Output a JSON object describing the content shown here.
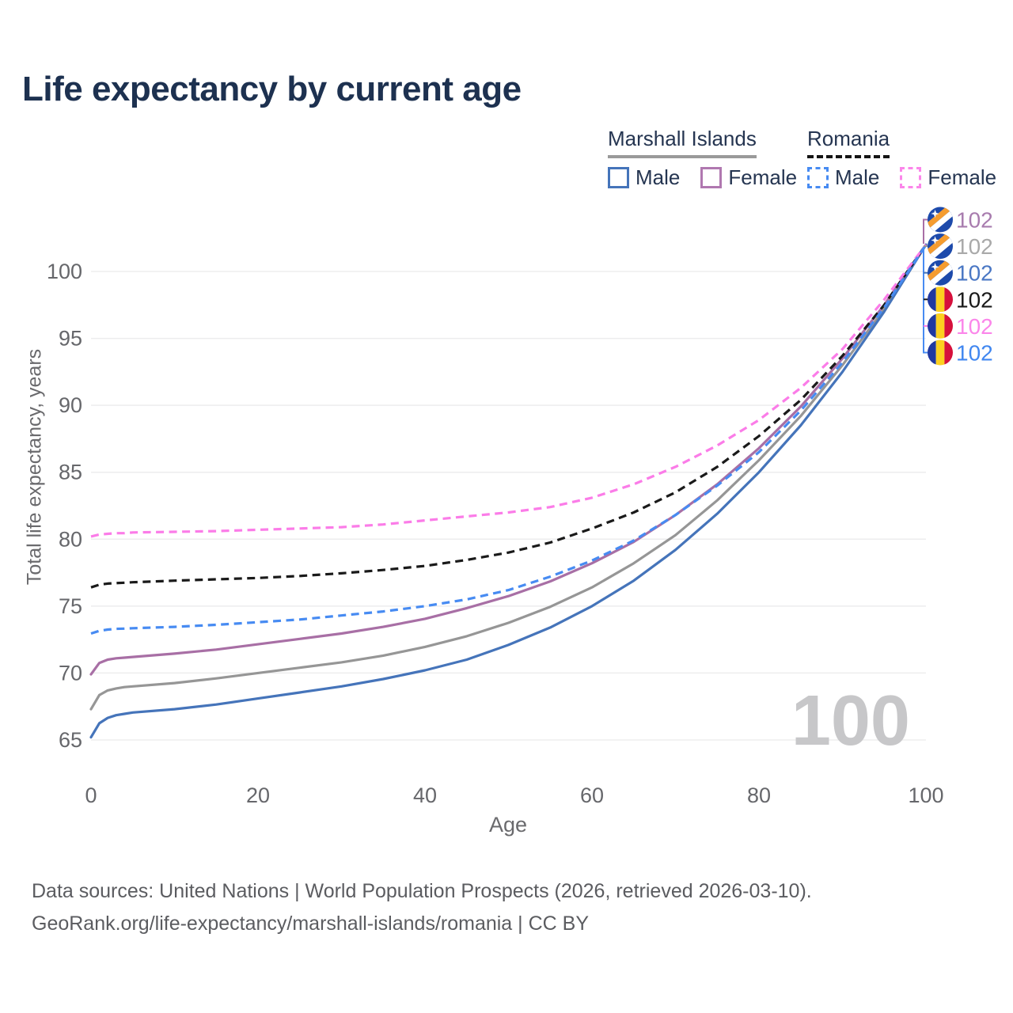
{
  "age_counter": "100",
  "legend": {
    "groups": [
      {
        "country": "Marshall Islands",
        "line_style": "solid",
        "line_color": "#9a9a9a",
        "items": [
          {
            "label": "Male",
            "color": "#4574ba",
            "dashed": false
          },
          {
            "label": "Female",
            "color": "#b078b0",
            "dashed": false
          }
        ]
      },
      {
        "country": "Romania",
        "line_style": "dashed",
        "line_color": "#141414",
        "items": [
          {
            "label": "Male",
            "color": "#478bf2",
            "dashed": true
          },
          {
            "label": "Female",
            "color": "#fb86ea",
            "dashed": true
          }
        ]
      }
    ]
  },
  "footer": {
    "line1": "Data sources: United Nations | World Population Prospects (2026, retrieved 2026-03-10).",
    "line2": "GeoRank.org/life-expectancy/marshall-islands/romania | CC BY"
  },
  "chart_data": {
    "type": "line",
    "title": "Life expectancy by current age",
    "xlabel": "Age",
    "ylabel": "Total life expectancy, years",
    "xlim": [
      0,
      100
    ],
    "ylim": [
      62,
      104
    ],
    "x_ticks": [
      0,
      20,
      40,
      60,
      80,
      100
    ],
    "y_ticks": [
      65,
      70,
      75,
      80,
      85,
      90,
      95,
      100
    ],
    "grid": "horizontal",
    "legend_position": "top-right",
    "x": [
      0,
      1,
      2,
      3,
      4,
      5,
      10,
      15,
      20,
      25,
      30,
      35,
      40,
      45,
      50,
      55,
      60,
      65,
      70,
      75,
      80,
      85,
      90,
      95,
      100
    ],
    "series": [
      {
        "id": "mi-female",
        "name": "Marshall Islands Female",
        "flag": "mh",
        "style": "solid",
        "color": "#a86fa5",
        "label_color": "#a87cae",
        "end_label": "102",
        "values": [
          69.9,
          70.75,
          71.0,
          71.1,
          71.15,
          71.2,
          71.45,
          71.75,
          72.15,
          72.55,
          72.95,
          73.45,
          74.05,
          74.85,
          75.75,
          76.85,
          78.2,
          79.8,
          81.8,
          84.1,
          86.8,
          89.9,
          93.5,
          97.5,
          102
        ]
      },
      {
        "id": "mi-combined",
        "name": "Marshall Islands Combined",
        "flag": "mh",
        "style": "solid",
        "color": "#969696",
        "label_color": "#a9a9a9",
        "end_label": "102",
        "values": [
          67.3,
          68.35,
          68.7,
          68.85,
          68.95,
          69.0,
          69.25,
          69.6,
          70.0,
          70.4,
          70.8,
          71.3,
          71.95,
          72.75,
          73.75,
          74.95,
          76.4,
          78.2,
          80.3,
          82.9,
          85.9,
          89.2,
          93.0,
          97.2,
          102
        ]
      },
      {
        "id": "mi-male",
        "name": "Marshall Islands Male",
        "flag": "mh",
        "style": "solid",
        "color": "#4574ba",
        "label_color": "#4a77c4",
        "end_label": "102",
        "values": [
          65.2,
          66.25,
          66.65,
          66.85,
          66.95,
          67.05,
          67.3,
          67.65,
          68.1,
          68.55,
          69.0,
          69.55,
          70.2,
          71.0,
          72.1,
          73.4,
          75.0,
          76.9,
          79.2,
          81.9,
          85.0,
          88.5,
          92.5,
          97.0,
          102
        ]
      },
      {
        "id": "ro-combined",
        "name": "Romania Combined",
        "flag": "ro",
        "style": "dashed",
        "color": "#1a1a1a",
        "label_color": "#1a1a1a",
        "end_label": "102",
        "values": [
          76.4,
          76.6,
          76.68,
          76.72,
          76.75,
          76.78,
          76.9,
          77.0,
          77.1,
          77.25,
          77.45,
          77.7,
          78.0,
          78.45,
          79.0,
          79.75,
          80.8,
          82.0,
          83.5,
          85.4,
          87.7,
          90.4,
          93.7,
          97.5,
          102
        ]
      },
      {
        "id": "ro-female",
        "name": "Romania Female",
        "flag": "ro",
        "style": "dashed",
        "color": "#fb7ce8",
        "label_color": "#fb86ea",
        "end_label": "102",
        "values": [
          80.2,
          80.35,
          80.4,
          80.45,
          80.45,
          80.5,
          80.55,
          80.6,
          80.7,
          80.8,
          80.9,
          81.1,
          81.4,
          81.7,
          82.0,
          82.4,
          83.1,
          84.1,
          85.4,
          87.0,
          88.9,
          91.3,
          94.2,
          97.9,
          102
        ]
      },
      {
        "id": "ro-male",
        "name": "Romania Male",
        "flag": "ro",
        "style": "dashed",
        "color": "#478bf2",
        "label_color": "#4187f0",
        "end_label": "102",
        "values": [
          72.95,
          73.15,
          73.25,
          73.3,
          73.32,
          73.35,
          73.45,
          73.6,
          73.8,
          74.0,
          74.3,
          74.6,
          75.0,
          75.5,
          76.2,
          77.2,
          78.4,
          79.9,
          81.8,
          84.0,
          86.5,
          89.6,
          93.2,
          97.3,
          102
        ]
      }
    ]
  }
}
